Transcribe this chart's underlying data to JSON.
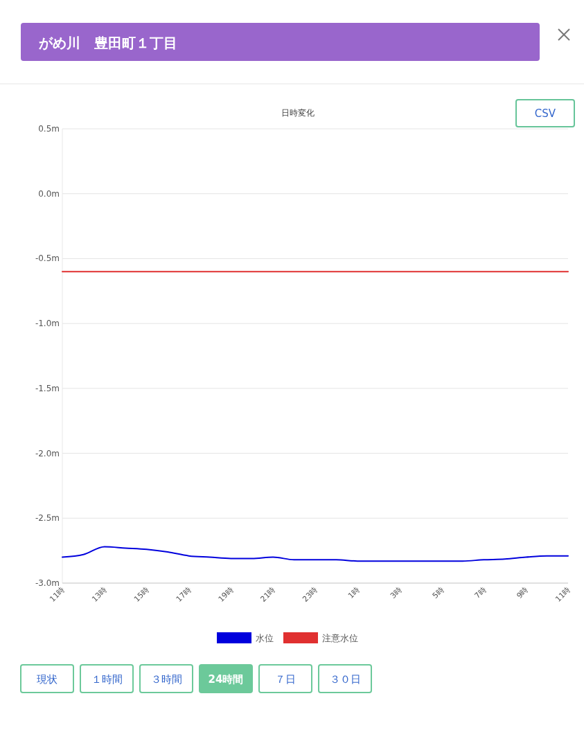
{
  "chart_data": {
    "type": "line",
    "title": "日時変化",
    "annotations": [
      "がめ川　豊田町１丁目",
      "CSV",
      "現状",
      "１時間",
      "３時間",
      "24時間",
      "７日",
      "３０日"
    ],
    "categories": [
      "11時",
      null,
      "13時",
      null,
      "15時",
      null,
      "17時",
      null,
      "19時",
      null,
      "21時",
      null,
      "23時",
      null,
      "1時",
      null,
      "3時",
      null,
      "5時",
      null,
      "7時",
      null,
      "9時",
      null,
      "11時"
    ],
    "ylim": [
      -3.0,
      0.5
    ],
    "yticks": [
      {
        "value": 0.5,
        "label": "0.5m"
      },
      {
        "value": 0,
        "label": "0.0m"
      },
      {
        "value": -0.5,
        "label": "-0.5m"
      },
      {
        "value": -1.0,
        "label": "-1.0m"
      },
      {
        "value": -1.5,
        "label": "-1.5m"
      },
      {
        "value": -2.0,
        "label": "-2.0m"
      },
      {
        "value": -2.5,
        "label": "-2.5m"
      },
      {
        "value": -3.0,
        "label": "-3.0m"
      }
    ],
    "grid": "y",
    "legend": "bottom",
    "marker": "none",
    "line_style": "solid",
    "series": [
      {
        "name": "水位",
        "color": "#0000dd",
        "values": [
          -2.8,
          -2.78,
          -2.72,
          -2.73,
          -2.74,
          -2.76,
          -2.79,
          -2.8,
          -2.81,
          -2.81,
          -2.8,
          -2.82,
          -2.82,
          -2.82,
          -2.83,
          -2.83,
          -2.83,
          -2.83,
          -2.83,
          -2.83,
          -2.82,
          -2.815,
          -2.8,
          -2.79,
          -2.79
        ]
      },
      {
        "name": "注意水位",
        "color": "#e03030",
        "values": [
          -0.6,
          -0.6,
          -0.6,
          -0.6,
          -0.6,
          -0.6,
          -0.6,
          -0.6,
          -0.6,
          -0.6,
          -0.6,
          -0.6,
          -0.6,
          -0.6,
          -0.6,
          -0.6,
          -0.6,
          -0.6,
          -0.6,
          -0.6,
          -0.6,
          -0.6,
          -0.6,
          -0.6,
          -0.6
        ]
      }
    ]
  }
}
